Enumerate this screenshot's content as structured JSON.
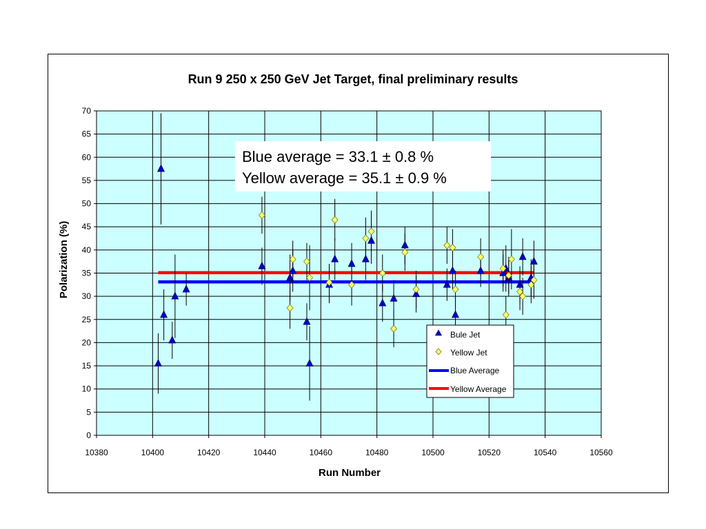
{
  "chart_data": {
    "type": "scatter",
    "title": "Run 9 250 x 250 GeV Jet Target, final preliminary results",
    "xlabel": "Run Number",
    "ylabel": "Polarization (%)",
    "xlim": [
      10380,
      10560
    ],
    "ylim": [
      0,
      70
    ],
    "xticks": [
      10380,
      10400,
      10420,
      10440,
      10460,
      10480,
      10500,
      10520,
      10540,
      10560
    ],
    "yticks": [
      0,
      5,
      10,
      15,
      20,
      25,
      30,
      35,
      40,
      45,
      50,
      55,
      60,
      65,
      70
    ],
    "grid": true,
    "plot_background": "#ccffff",
    "legend_position": "lower-right",
    "annotation_lines": [
      "Blue average = 33.1 ± 0.8 %",
      "Yellow average = 35.1 ± 0.9 %"
    ],
    "series": [
      {
        "name": "Bule Jet",
        "marker": "triangle",
        "color": "#0000cc",
        "points": [
          {
            "x": 10402,
            "y": 15.5,
            "err": 6.5
          },
          {
            "x": 10403,
            "y": 57.5,
            "err": 12.0
          },
          {
            "x": 10404,
            "y": 26.0,
            "err": 5.5
          },
          {
            "x": 10407,
            "y": 20.5,
            "err": 4.0
          },
          {
            "x": 10408,
            "y": 30.0,
            "err": 9.0
          },
          {
            "x": 10412,
            "y": 31.5,
            "err": 3.5
          },
          {
            "x": 10439,
            "y": 36.5,
            "err": 4.0
          },
          {
            "x": 10449,
            "y": 34.0,
            "err": 5.0
          },
          {
            "x": 10450,
            "y": 35.5,
            "err": 4.5
          },
          {
            "x": 10455,
            "y": 24.5,
            "err": 4.0
          },
          {
            "x": 10456,
            "y": 15.5,
            "err": 8.0
          },
          {
            "x": 10463,
            "y": 32.5,
            "err": 4.0
          },
          {
            "x": 10465,
            "y": 38.0,
            "err": 4.5
          },
          {
            "x": 10471,
            "y": 37.0,
            "err": 4.5
          },
          {
            "x": 10476,
            "y": 38.0,
            "err": 4.5
          },
          {
            "x": 10478,
            "y": 42.0,
            "err": 5.0
          },
          {
            "x": 10482,
            "y": 28.5,
            "err": 4.0
          },
          {
            "x": 10486,
            "y": 29.5,
            "err": 4.0
          },
          {
            "x": 10490,
            "y": 41.0,
            "err": 4.0
          },
          {
            "x": 10494,
            "y": 30.5,
            "err": 4.0
          },
          {
            "x": 10505,
            "y": 32.5,
            "err": 3.5
          },
          {
            "x": 10507,
            "y": 35.5,
            "err": 4.0
          },
          {
            "x": 10508,
            "y": 26.0,
            "err": 4.0
          },
          {
            "x": 10517,
            "y": 35.5,
            "err": 3.5
          },
          {
            "x": 10525,
            "y": 35.0,
            "err": 4.0
          },
          {
            "x": 10526,
            "y": 36.0,
            "err": 5.0
          },
          {
            "x": 10527,
            "y": 34.0,
            "err": 4.0
          },
          {
            "x": 10531,
            "y": 32.5,
            "err": 4.0
          },
          {
            "x": 10532,
            "y": 38.5,
            "err": 4.0
          },
          {
            "x": 10535,
            "y": 34.0,
            "err": 4.0
          },
          {
            "x": 10536,
            "y": 37.5,
            "err": 4.5
          }
        ]
      },
      {
        "name": "Yellow Jet",
        "marker": "diamond",
        "color": "#ffff66",
        "points": [
          {
            "x": 10439,
            "y": 47.5,
            "err": 4.0
          },
          {
            "x": 10449,
            "y": 27.5,
            "err": 4.5
          },
          {
            "x": 10450,
            "y": 38.0,
            "err": 4.0
          },
          {
            "x": 10455,
            "y": 37.5,
            "err": 4.0
          },
          {
            "x": 10456,
            "y": 34.0,
            "err": 7.0
          },
          {
            "x": 10463,
            "y": 33.0,
            "err": 4.0
          },
          {
            "x": 10465,
            "y": 46.5,
            "err": 4.5
          },
          {
            "x": 10471,
            "y": 32.5,
            "err": 4.5
          },
          {
            "x": 10476,
            "y": 42.5,
            "err": 4.5
          },
          {
            "x": 10478,
            "y": 44.0,
            "err": 4.5
          },
          {
            "x": 10482,
            "y": 35.0,
            "err": 4.0
          },
          {
            "x": 10486,
            "y": 23.0,
            "err": 4.0
          },
          {
            "x": 10490,
            "y": 39.5,
            "err": 4.0
          },
          {
            "x": 10494,
            "y": 31.5,
            "err": 4.0
          },
          {
            "x": 10505,
            "y": 41.0,
            "err": 4.0
          },
          {
            "x": 10507,
            "y": 40.5,
            "err": 4.0
          },
          {
            "x": 10508,
            "y": 31.5,
            "err": 4.0
          },
          {
            "x": 10517,
            "y": 38.5,
            "err": 4.0
          },
          {
            "x": 10525,
            "y": 36.0,
            "err": 4.0
          },
          {
            "x": 10526,
            "y": 26.0,
            "err": 4.0
          },
          {
            "x": 10527,
            "y": 34.5,
            "err": 4.0
          },
          {
            "x": 10528,
            "y": 38.0,
            "err": 6.5
          },
          {
            "x": 10531,
            "y": 31.0,
            "err": 4.0
          },
          {
            "x": 10532,
            "y": 30.0,
            "err": 4.0
          },
          {
            "x": 10535,
            "y": 32.5,
            "err": 4.0
          },
          {
            "x": 10536,
            "y": 33.5,
            "err": 4.0
          }
        ]
      },
      {
        "name": "Blue Average",
        "type": "line",
        "color": "#0000ff",
        "x": [
          10402,
          10536
        ],
        "values": [
          33.1,
          33.1
        ]
      },
      {
        "name": "Yellow Average",
        "type": "line",
        "color": "#ff0000",
        "x": [
          10402,
          10536
        ],
        "values": [
          35.1,
          35.1
        ]
      }
    ]
  }
}
